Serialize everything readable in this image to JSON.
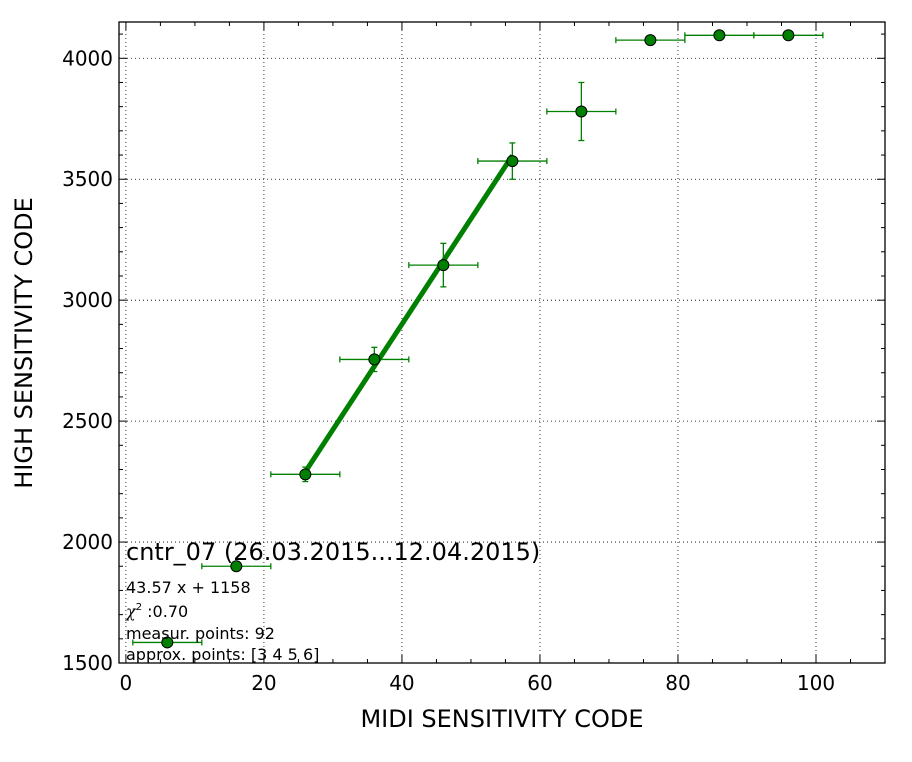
{
  "chart_data": {
    "type": "scatter",
    "xlabel": "MIDI SENSITIVITY CODE",
    "ylabel": "HIGH SENSITIVITY CODE",
    "xlim": [
      -1,
      110
    ],
    "ylim": [
      1500,
      4150
    ],
    "xticks": [
      0,
      20,
      40,
      60,
      80,
      100
    ],
    "yticks": [
      1500,
      2000,
      2500,
      3000,
      3500,
      4000
    ],
    "xtick_labels": [
      "0",
      "20",
      "40",
      "60",
      "80",
      "100"
    ],
    "ytick_labels": [
      "1500",
      "2000",
      "2500",
      "3000",
      "3500",
      "4000"
    ],
    "grid": true,
    "marker_color": "#008000",
    "line_color": "#008000",
    "points": [
      {
        "x": 6,
        "y": 1585,
        "xerr": 5,
        "yerr": 0
      },
      {
        "x": 16,
        "y": 1900,
        "xerr": 5,
        "yerr": 0
      },
      {
        "x": 26,
        "y": 2280,
        "xerr": 5,
        "yerr": 30
      },
      {
        "x": 36,
        "y": 2755,
        "xerr": 5,
        "yerr": 50
      },
      {
        "x": 46,
        "y": 3145,
        "xerr": 5,
        "yerr": 90
      },
      {
        "x": 56,
        "y": 3575,
        "xerr": 5,
        "yerr": 75
      },
      {
        "x": 66,
        "y": 3780,
        "xerr": 5,
        "yerr": 120
      },
      {
        "x": 76,
        "y": 4075,
        "xerr": 5,
        "yerr": 0
      },
      {
        "x": 86,
        "y": 4095,
        "xerr": 5,
        "yerr": 0
      },
      {
        "x": 96,
        "y": 4095,
        "xerr": 5,
        "yerr": 0
      }
    ],
    "fit_line": {
      "slope": 43.57,
      "intercept": 1158,
      "x_start": 26,
      "x_end": 56
    },
    "annotation": {
      "title": "cntr_07 (26.03.2015...12.04.2015)",
      "equation": "43.57 x + 1158",
      "chi2_symbol": "χ",
      "chi2_power": "2",
      "chi2_value": " :0.70",
      "measur_points": "measur. points: 92",
      "approx_points": "approx. points: [3 4 5 6]"
    }
  }
}
